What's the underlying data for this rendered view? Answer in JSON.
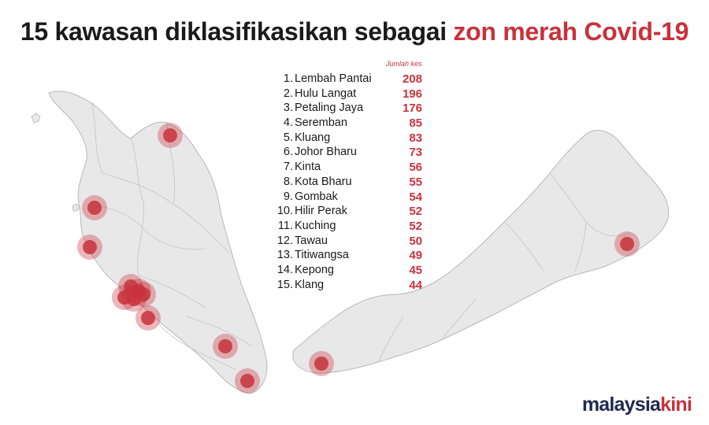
{
  "title": {
    "main": "15 kawasan diklasifikasikan sebagai ",
    "highlight": "zon merah Covid-19"
  },
  "table_header": "Jumlah kes",
  "zones": [
    {
      "rank": "1.",
      "name": "Lembah Pantai",
      "cases": "208"
    },
    {
      "rank": "2.",
      "name": "Hulu Langat",
      "cases": "196"
    },
    {
      "rank": "3.",
      "name": "Petaling Jaya",
      "cases": "176"
    },
    {
      "rank": "4.",
      "name": "Seremban",
      "cases": "85"
    },
    {
      "rank": "5.",
      "name": "Kluang",
      "cases": "83"
    },
    {
      "rank": "6.",
      "name": "Johor Bharu",
      "cases": "73"
    },
    {
      "rank": "7.",
      "name": "Kinta",
      "cases": "56"
    },
    {
      "rank": "8.",
      "name": "Kota Bharu",
      "cases": "55"
    },
    {
      "rank": "9.",
      "name": "Gombak",
      "cases": "54"
    },
    {
      "rank": "10.",
      "name": "Hilir Perak",
      "cases": "52"
    },
    {
      "rank": "11.",
      "name": "Kuching",
      "cases": "52"
    },
    {
      "rank": "12.",
      "name": "Tawau",
      "cases": "50"
    },
    {
      "rank": "13.",
      "name": "Titiwangsa",
      "cases": "49"
    },
    {
      "rank": "14.",
      "name": "Kepong",
      "cases": "45"
    },
    {
      "rank": "15.",
      "name": "Klang",
      "cases": "44"
    }
  ],
  "logo": {
    "part1": "malaysia",
    "part2": "kini"
  },
  "colors": {
    "accent": "#c8323c",
    "land": "#e8e8e8",
    "land_border": "#b8b8b8",
    "marker": "#c8323c",
    "title": "#1a1a1a",
    "logo_dark": "#1e2b4f"
  }
}
